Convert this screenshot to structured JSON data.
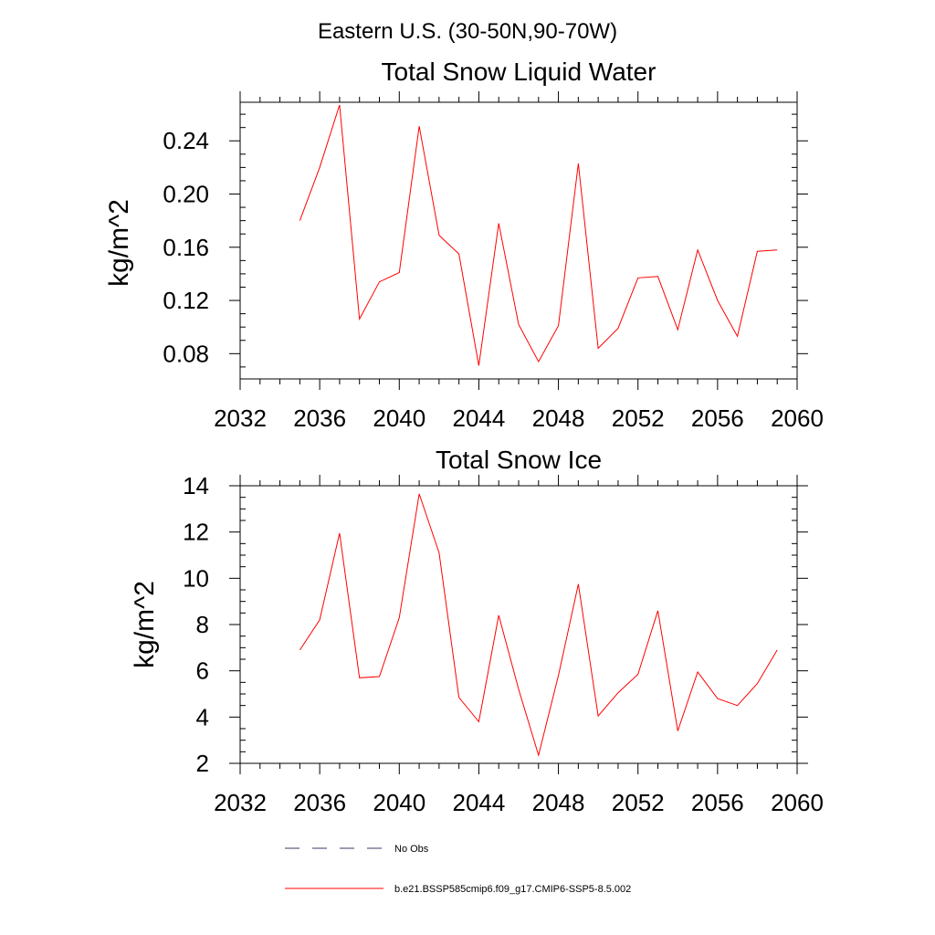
{
  "figure": {
    "suptitle": "Eastern U.S. (30-50N,90-70W)"
  },
  "chart_data": [
    {
      "type": "line",
      "title": "Total Snow Liquid Water",
      "xlabel": "",
      "ylabel": "kg/m^2",
      "xlim": [
        2032,
        2060
      ],
      "ylim": [
        0.061,
        0.269
      ],
      "xticks": [
        2032,
        2036,
        2040,
        2044,
        2048,
        2052,
        2056,
        2060
      ],
      "yticks": [
        0.08,
        0.12,
        0.16,
        0.2,
        0.24
      ],
      "ytick_labels": [
        "0.08",
        "0.12",
        "0.16",
        "0.20",
        "0.24"
      ],
      "x_minor_step": 1,
      "y_minor_step": 0.01,
      "grid": false,
      "series": [
        {
          "name": "b.e21.BSSP585cmip6.f09_g17.CMIP6-SSP5-8.5.002",
          "color": "#ff0000",
          "x": [
            2035,
            2036,
            2037,
            2038,
            2039,
            2040,
            2041,
            2042,
            2043,
            2044,
            2045,
            2046,
            2047,
            2048,
            2049,
            2050,
            2051,
            2052,
            2053,
            2054,
            2055,
            2056,
            2057,
            2058,
            2059
          ],
          "y": [
            0.18,
            0.22,
            0.267,
            0.106,
            0.134,
            0.141,
            0.251,
            0.169,
            0.155,
            0.071,
            0.178,
            0.102,
            0.074,
            0.101,
            0.223,
            0.084,
            0.099,
            0.137,
            0.138,
            0.098,
            0.158,
            0.12,
            0.093,
            0.157,
            0.158
          ]
        }
      ]
    },
    {
      "type": "line",
      "title": "Total Snow Ice",
      "xlabel": "",
      "ylabel": "kg/m^2",
      "xlim": [
        2032,
        2060
      ],
      "ylim": [
        2,
        14
      ],
      "xticks": [
        2032,
        2036,
        2040,
        2044,
        2048,
        2052,
        2056,
        2060
      ],
      "yticks": [
        2,
        4,
        6,
        8,
        10,
        12,
        14
      ],
      "ytick_labels": [
        "2",
        "4",
        "6",
        "8",
        "10",
        "12",
        "14"
      ],
      "x_minor_step": 1,
      "y_minor_step": 0.5,
      "grid": false,
      "series": [
        {
          "name": "b.e21.BSSP585cmip6.f09_g17.CMIP6-SSP5-8.5.002",
          "color": "#ff0000",
          "x": [
            2035,
            2036,
            2037,
            2038,
            2039,
            2040,
            2041,
            2042,
            2043,
            2044,
            2045,
            2046,
            2047,
            2048,
            2049,
            2050,
            2051,
            2052,
            2053,
            2054,
            2055,
            2056,
            2057,
            2058,
            2059
          ],
          "y": [
            6.9,
            8.2,
            11.95,
            5.7,
            5.75,
            8.3,
            13.65,
            11.1,
            4.85,
            3.8,
            8.4,
            5.2,
            2.35,
            5.8,
            9.75,
            4.05,
            5.05,
            5.85,
            8.6,
            3.4,
            5.95,
            4.8,
            4.5,
            5.45,
            6.9
          ]
        }
      ]
    }
  ],
  "legend": {
    "position": "bottom",
    "items": [
      {
        "label": "No Obs",
        "color": "#3a3a66",
        "dash": "dashed"
      },
      {
        "label": "b.e21.BSSP585cmip6.f09_g17.CMIP6-SSP5-8.5.002",
        "color": "#ff0000",
        "dash": "solid"
      }
    ]
  }
}
